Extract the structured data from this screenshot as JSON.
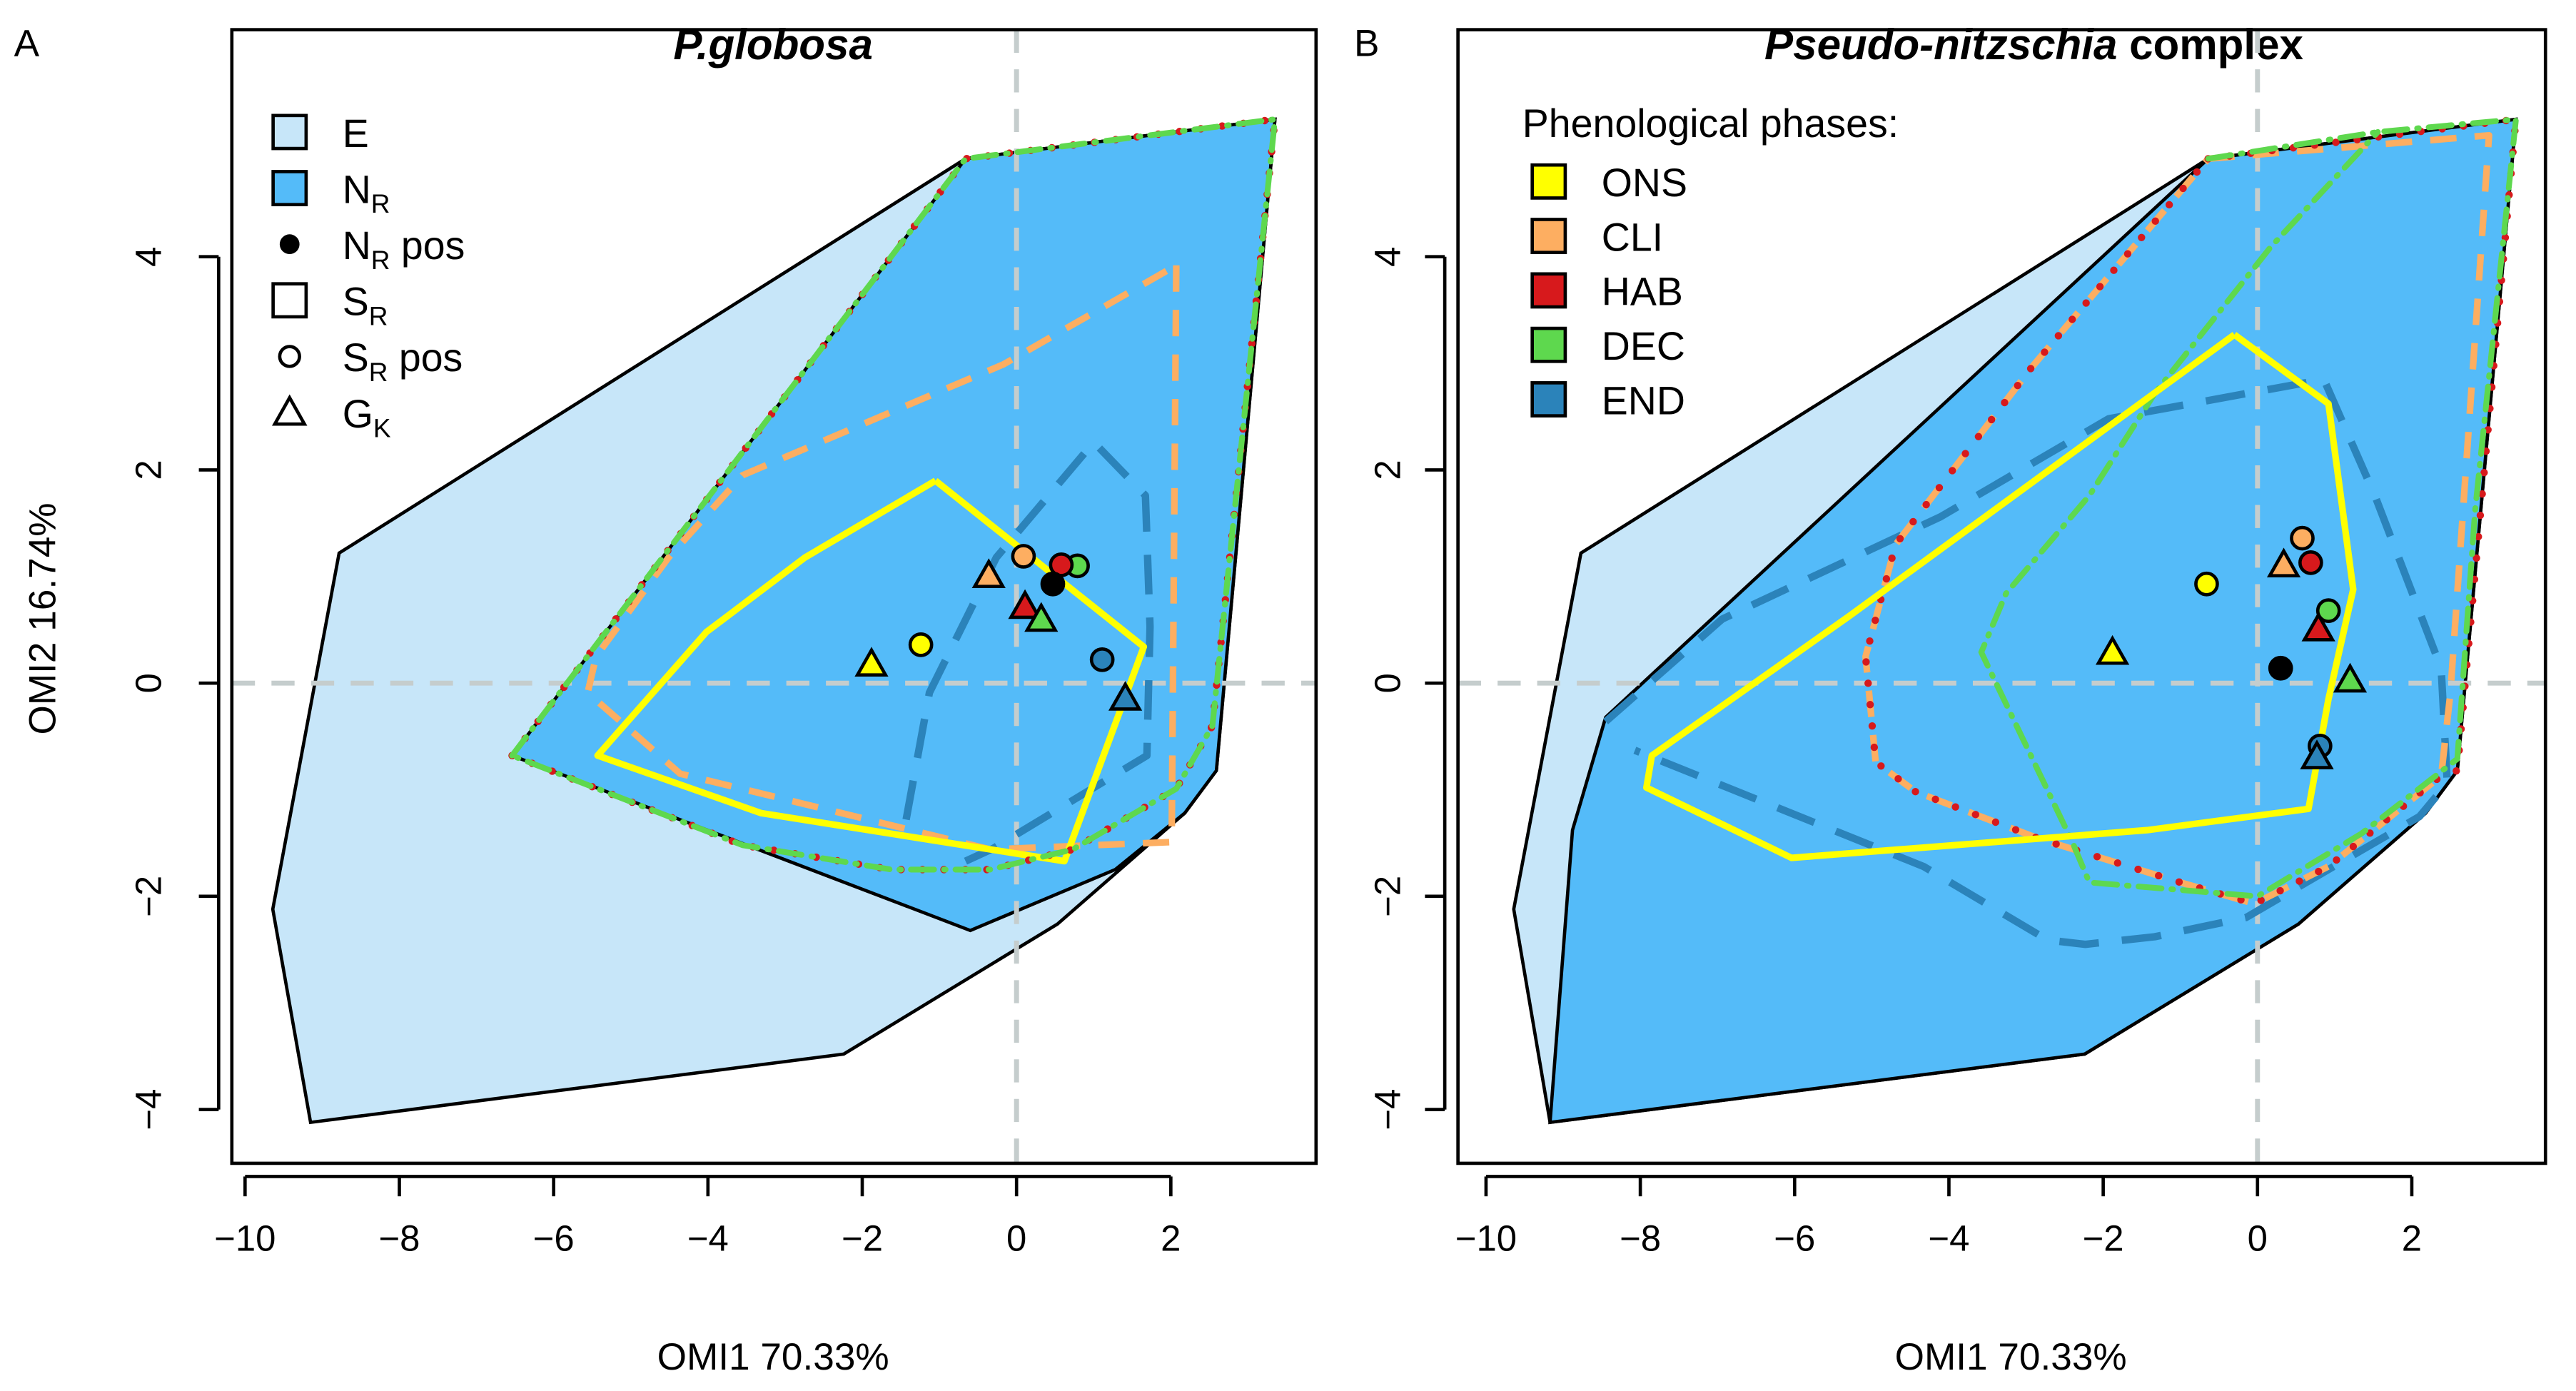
{
  "colors": {
    "E": "#c7e6f9",
    "NR": "#54bbf9",
    "ONS": "#ffff00",
    "CLI": "#fdae61",
    "HAB": "#d7191c",
    "DEC": "#5ed84e",
    "END": "#2b83ba",
    "refline": "#c5cdcd"
  },
  "chart_data": [
    {
      "type": "scatter",
      "panel": "A",
      "title": "P.globosa",
      "title_italic": "P.globosa",
      "title_rest": "",
      "xlabel": "OMI1 70.33%",
      "ylabel": "OMI2 16.74%",
      "xlim": [
        -10.2,
        3.8
      ],
      "ylim": [
        -4.5,
        5.9
      ],
      "xticks": [
        -10,
        -8,
        -6,
        -4,
        -2,
        0,
        2
      ],
      "yticks": [
        -4,
        -2,
        0,
        2,
        4
      ],
      "legend": {
        "placement": "top-left",
        "items": [
          {
            "symbol": "fill-E",
            "main": "E",
            "sub": "",
            "rest": ""
          },
          {
            "symbol": "fill-NR",
            "main": "N",
            "sub": "R",
            "rest": ""
          },
          {
            "symbol": "dot",
            "main": "N",
            "sub": "R",
            "rest": " pos"
          },
          {
            "symbol": "square",
            "main": "S",
            "sub": "R",
            "rest": ""
          },
          {
            "symbol": "circle",
            "main": "S",
            "sub": "R",
            "rest": " pos"
          },
          {
            "symbol": "triangle",
            "main": "G",
            "sub": "K",
            "rest": ""
          }
        ]
      },
      "E_polygon": [
        [
          -8.78,
          1.22
        ],
        [
          -9.64,
          -2.12
        ],
        [
          -9.15,
          -4.12
        ],
        [
          -2.24,
          -3.48
        ],
        [
          0.53,
          -2.26
        ],
        [
          2.18,
          -1.22
        ],
        [
          2.59,
          -0.82
        ],
        [
          3.35,
          5.29
        ],
        [
          -0.66,
          4.92
        ]
      ],
      "NR_polygon": [
        [
          -0.66,
          4.92
        ],
        [
          3.35,
          5.29
        ],
        [
          2.59,
          -0.82
        ],
        [
          2.18,
          -1.22
        ],
        [
          1.28,
          -1.75
        ],
        [
          -0.6,
          -2.32
        ],
        [
          -6.54,
          -0.68
        ]
      ],
      "lines": [
        {
          "phase": "CLI",
          "style": "dashed",
          "points": [
            [
              2.07,
              3.92
            ],
            [
              2.01,
              -1.49
            ],
            [
              -0.34,
              -1.56
            ],
            [
              -4.36,
              -0.85
            ],
            [
              -5.56,
              -0.09
            ],
            [
              -5.45,
              0.25
            ],
            [
              -4.51,
              1.18
            ],
            [
              -3.55,
              1.95
            ],
            [
              -0.17,
              2.99
            ],
            [
              2.07,
              3.92
            ]
          ]
        },
        {
          "phase": "END",
          "style": "longdash",
          "points": [
            [
              -1.43,
              -1.28
            ],
            [
              -1.13,
              -0.09
            ],
            [
              -0.26,
              1.18
            ],
            [
              1.0,
              2.26
            ],
            [
              1.67,
              1.76
            ],
            [
              1.73,
              0.53
            ],
            [
              1.69,
              -0.68
            ],
            [
              -0.3,
              -1.55
            ],
            [
              -0.66,
              -1.67
            ]
          ]
        },
        {
          "phase": "ONS",
          "style": "solid",
          "points": [
            [
              -1.05,
              1.9
            ],
            [
              -2.74,
              1.18
            ],
            [
              -4.02,
              0.48
            ],
            [
              -5.43,
              -0.68
            ],
            [
              -3.31,
              -1.22
            ],
            [
              0.62,
              -1.67
            ],
            [
              1.65,
              0.34
            ],
            [
              -1.05,
              1.9
            ]
          ]
        },
        {
          "phase": "HAB",
          "style": "dotted",
          "points": [
            [
              -6.54,
              -0.68
            ],
            [
              -0.66,
              4.92
            ],
            [
              3.35,
              5.29
            ],
            [
              2.54,
              -0.4
            ],
            [
              2.07,
              -0.99
            ],
            [
              0.73,
              -1.56
            ],
            [
              -0.34,
              -1.75
            ],
            [
              -1.62,
              -1.75
            ],
            [
              -3.55,
              -1.52
            ],
            [
              -6.54,
              -0.68
            ]
          ]
        },
        {
          "phase": "DEC",
          "style": "dotdash",
          "points": [
            [
              -6.54,
              -0.68
            ],
            [
              -0.66,
              4.92
            ],
            [
              3.35,
              5.29
            ],
            [
              2.54,
              -0.4
            ],
            [
              2.07,
              -0.99
            ],
            [
              0.73,
              -1.56
            ],
            [
              -0.34,
              -1.75
            ],
            [
              -1.62,
              -1.75
            ],
            [
              -3.55,
              -1.52
            ],
            [
              -6.54,
              -0.68
            ]
          ]
        }
      ],
      "points": [
        {
          "phase": "ONS",
          "shape": "triangle",
          "x": -1.88,
          "y": 0.17
        },
        {
          "phase": "ONS",
          "shape": "circle",
          "x": -1.24,
          "y": 0.36
        },
        {
          "phase": "CLI",
          "shape": "triangle",
          "x": -0.36,
          "y": 1.0
        },
        {
          "phase": "CLI",
          "shape": "circle",
          "x": 0.09,
          "y": 1.19
        },
        {
          "phase": "DEC",
          "shape": "circle",
          "x": 0.79,
          "y": 1.1
        },
        {
          "phase": "HAB",
          "shape": "circle",
          "x": 0.58,
          "y": 1.11
        },
        {
          "phase": "NR",
          "shape": "dot",
          "x": 0.47,
          "y": 0.93
        },
        {
          "phase": "HAB",
          "shape": "triangle",
          "x": 0.11,
          "y": 0.71
        },
        {
          "phase": "DEC",
          "shape": "triangle",
          "x": 0.32,
          "y": 0.59
        },
        {
          "phase": "END",
          "shape": "circle",
          "x": 1.11,
          "y": 0.22
        },
        {
          "phase": "END",
          "shape": "triangle",
          "x": 1.41,
          "y": -0.15
        }
      ]
    },
    {
      "type": "scatter",
      "panel": "B",
      "title": "Pseudo-nitzschia complex",
      "title_italic": "Pseudo-nitzschia",
      "title_rest": " complex",
      "xlabel": "OMI1 70.33%",
      "ylabel": "",
      "xlim": [
        -10.2,
        3.8
      ],
      "ylim": [
        -4.5,
        5.9
      ],
      "xticks": [
        -10,
        -8,
        -6,
        -4,
        -2,
        0,
        2
      ],
      "yticks": [
        -4,
        -2,
        0,
        2,
        4
      ],
      "legend": {
        "placement": "top-left",
        "title": "Phenological phases:",
        "items": [
          {
            "phase": "ONS",
            "label": "ONS"
          },
          {
            "phase": "CLI",
            "label": "CLI"
          },
          {
            "phase": "HAB",
            "label": "HAB"
          },
          {
            "phase": "DEC",
            "label": "DEC"
          },
          {
            "phase": "END",
            "label": "END"
          }
        ]
      },
      "E_polygon": [
        [
          -8.77,
          1.22
        ],
        [
          -9.64,
          -2.12
        ],
        [
          -9.17,
          -4.12
        ],
        [
          -2.24,
          -3.48
        ],
        [
          0.53,
          -2.26
        ],
        [
          2.18,
          -1.22
        ],
        [
          2.59,
          -0.82
        ],
        [
          3.35,
          5.29
        ],
        [
          -0.64,
          4.92
        ]
      ],
      "NR_polygon": [
        [
          -9.17,
          -4.12
        ],
        [
          -2.24,
          -3.48
        ],
        [
          0.53,
          -2.26
        ],
        [
          2.18,
          -1.22
        ],
        [
          2.59,
          -0.82
        ],
        [
          3.35,
          5.29
        ],
        [
          -0.64,
          4.92
        ],
        [
          -8.45,
          -0.32
        ],
        [
          -8.88,
          -1.38
        ]
      ],
      "lines": [
        {
          "phase": "END",
          "style": "longdash",
          "points": [
            [
              -8.45,
              -0.36
            ],
            [
              -6.94,
              0.6
            ],
            [
              -4.11,
              1.56
            ],
            [
              -1.93,
              2.48
            ],
            [
              0.86,
              2.85
            ],
            [
              1.52,
              1.76
            ],
            [
              2.38,
              0.14
            ],
            [
              2.46,
              -0.94
            ],
            [
              2.1,
              -1.25
            ],
            [
              -0.15,
              -2.2
            ],
            [
              -1.33,
              -2.38
            ],
            [
              -2.23,
              -2.45
            ],
            [
              -2.72,
              -2.41
            ],
            [
              -4.33,
              -1.72
            ],
            [
              -8.07,
              -0.63
            ]
          ]
        },
        {
          "phase": "CLI",
          "style": "dashed",
          "points": [
            [
              -0.64,
              4.92
            ],
            [
              3.0,
              5.14
            ],
            [
              2.5,
              -0.09
            ],
            [
              2.38,
              -0.87
            ],
            [
              0.92,
              -1.72
            ],
            [
              -0.04,
              -2.07
            ],
            [
              -1.0,
              -1.87
            ],
            [
              -2.83,
              -1.46
            ],
            [
              -4.43,
              -1.02
            ],
            [
              -4.95,
              -0.74
            ],
            [
              -5.08,
              0.25
            ],
            [
              -4.69,
              1.3
            ],
            [
              -2.93,
              2.96
            ],
            [
              -0.64,
              4.92
            ]
          ]
        },
        {
          "phase": "HAB",
          "style": "dotted",
          "points": [
            [
              -0.64,
              4.92
            ],
            [
              3.35,
              5.29
            ],
            [
              2.59,
              -0.82
            ],
            [
              2.38,
              -0.87
            ],
            [
              0.92,
              -1.72
            ],
            [
              -0.04,
              -2.07
            ],
            [
              -1.0,
              -1.87
            ],
            [
              -2.83,
              -1.46
            ],
            [
              -4.43,
              -1.02
            ],
            [
              -4.95,
              -0.74
            ],
            [
              -5.08,
              0.25
            ],
            [
              -4.69,
              1.3
            ],
            [
              -2.93,
              2.96
            ],
            [
              -0.64,
              4.92
            ]
          ]
        },
        {
          "phase": "DEC",
          "style": "dotdash",
          "points": [
            [
              -0.64,
              4.92
            ],
            [
              1.56,
              5.17
            ],
            [
              3.35,
              5.29
            ],
            [
              2.82,
              1.61
            ],
            [
              2.59,
              -0.71
            ],
            [
              1.35,
              -1.41
            ],
            [
              0.0,
              -2.0
            ],
            [
              -2.18,
              -1.87
            ],
            [
              -2.4,
              -1.49
            ],
            [
              -3.58,
              0.29
            ],
            [
              -3.26,
              0.84
            ],
            [
              -2.18,
              1.76
            ],
            [
              -1.33,
              2.72
            ],
            [
              0.17,
              4.09
            ],
            [
              1.56,
              5.17
            ]
          ]
        },
        {
          "phase": "ONS",
          "style": "solid",
          "points": [
            [
              -0.3,
              3.27
            ],
            [
              0.92,
              2.62
            ],
            [
              1.24,
              0.88
            ],
            [
              0.92,
              -0.15
            ],
            [
              0.66,
              -1.18
            ],
            [
              -1.43,
              -1.38
            ],
            [
              -6.04,
              -1.64
            ],
            [
              -7.92,
              -0.98
            ],
            [
              -7.85,
              -0.68
            ],
            [
              -5.29,
              0.63
            ],
            [
              -0.3,
              3.27
            ]
          ]
        }
      ],
      "points": [
        {
          "phase": "ONS",
          "shape": "triangle",
          "x": -1.88,
          "y": 0.28
        },
        {
          "phase": "ONS",
          "shape": "circle",
          "x": -0.66,
          "y": 0.93
        },
        {
          "phase": "CLI",
          "shape": "circle",
          "x": 0.58,
          "y": 1.36
        },
        {
          "phase": "CLI",
          "shape": "triangle",
          "x": 0.34,
          "y": 1.1
        },
        {
          "phase": "HAB",
          "shape": "circle",
          "x": 0.69,
          "y": 1.13
        },
        {
          "phase": "DEC",
          "shape": "circle",
          "x": 0.92,
          "y": 0.68
        },
        {
          "phase": "HAB",
          "shape": "triangle",
          "x": 0.79,
          "y": 0.5
        },
        {
          "phase": "NR",
          "shape": "dot",
          "x": 0.3,
          "y": 0.14
        },
        {
          "phase": "DEC",
          "shape": "triangle",
          "x": 1.2,
          "y": 0.02
        },
        {
          "phase": "END",
          "shape": "circle",
          "x": 0.81,
          "y": -0.59
        },
        {
          "phase": "END",
          "shape": "triangle",
          "x": 0.77,
          "y": -0.7
        }
      ]
    }
  ]
}
